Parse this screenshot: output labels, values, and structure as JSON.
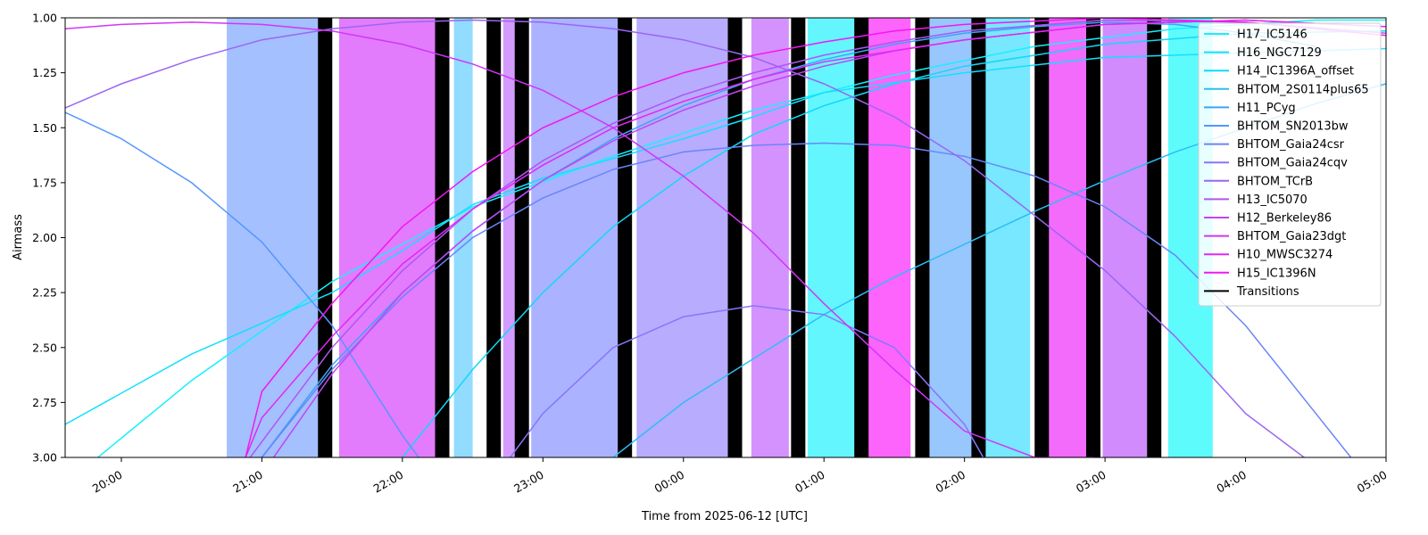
{
  "chart_data": {
    "type": "line",
    "title": "",
    "xlabel": "Time from 2025-06-12 [UTC]",
    "ylabel": "Airmass",
    "x_unit": "UTC time",
    "xlim": [
      "2025-06-11T19:36",
      "2025-06-12T05:00"
    ],
    "ylim": [
      1.0,
      3.0
    ],
    "y_inverted": true,
    "grid": false,
    "legend_position": "top-right",
    "x_ticks": [
      "20:00",
      "21:00",
      "22:00",
      "23:00",
      "00:00",
      "01:00",
      "02:00",
      "03:00",
      "04:00",
      "05:00"
    ],
    "y_ticks": [
      "1.00",
      "1.25",
      "1.50",
      "1.75",
      "2.00",
      "2.25",
      "2.50",
      "2.75",
      "3.00"
    ],
    "transitions": {
      "name": "Transitions",
      "color": "#000000",
      "times": [
        "21:27",
        "22:17",
        "22:39",
        "22:51",
        "23:35",
        "00:22",
        "00:49",
        "01:16",
        "01:42",
        "02:06",
        "02:33",
        "02:55",
        "03:21"
      ]
    },
    "observation_blocks": [
      {
        "start": "20:45",
        "end": "21:27",
        "color": "#a4c0ff"
      },
      {
        "start": "21:33",
        "end": "22:14",
        "color": "#e27cfd"
      },
      {
        "start": "22:22",
        "end": "22:30",
        "color": "#91dcff"
      },
      {
        "start": "22:43",
        "end": "22:48",
        "color": "#d49bff"
      },
      {
        "start": "22:55",
        "end": "23:35",
        "color": "#abb2ff"
      },
      {
        "start": "23:40",
        "end": "00:22",
        "color": "#b8acfe"
      },
      {
        "start": "00:29",
        "end": "00:45",
        "color": "#d492ff"
      },
      {
        "start": "00:53",
        "end": "01:13",
        "color": "#64f6fe"
      },
      {
        "start": "01:18",
        "end": "01:37",
        "color": "#fc64fc"
      },
      {
        "start": "01:44",
        "end": "02:03",
        "color": "#98c7fd"
      },
      {
        "start": "02:08",
        "end": "02:28",
        "color": "#77e8ff"
      },
      {
        "start": "02:34",
        "end": "02:53",
        "color": "#f26bfb"
      },
      {
        "start": "02:59",
        "end": "03:18",
        "color": "#d18bfd"
      },
      {
        "start": "03:27",
        "end": "03:46",
        "color": "#5efbfd"
      }
    ],
    "series": [
      {
        "name": "H17_IC5146",
        "color": "#16f0ff",
        "x": [
          "19:50",
          "20:30",
          "21:30",
          "22:30",
          "23:30",
          "00:30",
          "01:30",
          "02:30",
          "03:30",
          "04:30",
          "05:00"
        ],
        "y": [
          3.0,
          2.65,
          2.2,
          1.86,
          1.63,
          1.42,
          1.26,
          1.13,
          1.05,
          1.01,
          1.01
        ]
      },
      {
        "name": "H16_NGC7129",
        "color": "#12e0ff",
        "x": [
          "19:36",
          "20:30",
          "21:30",
          "22:00",
          "22:30",
          "23:00",
          "23:30",
          "00:00",
          "00:30",
          "01:00",
          "02:00",
          "03:00",
          "04:00",
          "05:00"
        ],
        "y": [
          2.85,
          2.53,
          2.25,
          2.06,
          1.85,
          1.73,
          1.64,
          1.55,
          1.45,
          1.34,
          1.25,
          1.18,
          1.16,
          1.14
        ]
      },
      {
        "name": "H14_IC1396A_offset",
        "color": "#10d8f8",
        "x": [
          "22:00",
          "22:30",
          "23:00",
          "23:30",
          "00:00",
          "00:30",
          "01:00",
          "01:30",
          "02:00",
          "03:00",
          "04:00",
          "05:00"
        ],
        "y": [
          3.0,
          2.6,
          2.25,
          1.95,
          1.72,
          1.53,
          1.4,
          1.3,
          1.22,
          1.12,
          1.07,
          1.06
        ]
      },
      {
        "name": "BHTOM_2S0114plus65",
        "color": "#2cbdf5",
        "x": [
          "23:30",
          "00:00",
          "00:30",
          "01:00",
          "01:30",
          "02:00",
          "02:30",
          "03:00",
          "03:30",
          "04:00",
          "04:30",
          "05:00"
        ],
        "y": [
          3.0,
          2.75,
          2.55,
          2.35,
          2.18,
          2.03,
          1.88,
          1.74,
          1.61,
          1.5,
          1.39,
          1.3
        ]
      },
      {
        "name": "H11_PCyg",
        "color": "#3aa6f5",
        "x": [
          "21:00",
          "21:30",
          "22:00",
          "22:30",
          "23:00",
          "23:30",
          "00:00",
          "00:30",
          "01:00",
          "01:30",
          "02:00",
          "02:30",
          "03:00",
          "03:30",
          "04:00",
          "04:30"
        ],
        "y": [
          3.0,
          2.58,
          2.25,
          1.97,
          1.74,
          1.55,
          1.4,
          1.28,
          1.19,
          1.12,
          1.07,
          1.04,
          1.02,
          1.03,
          1.07,
          1.13
        ]
      },
      {
        "name": "BHTOM_SN2013bw",
        "color": "#5496ff",
        "x": [
          "19:36",
          "20:00",
          "20:30",
          "21:00",
          "21:30",
          "22:00",
          "22:07"
        ],
        "y": [
          1.43,
          1.55,
          1.75,
          2.02,
          2.4,
          2.9,
          3.0
        ]
      },
      {
        "name": "BHTOM_Gaia24csr",
        "color": "#6a85fa",
        "x": [
          "21:00",
          "21:30",
          "22:00",
          "22:30",
          "23:00",
          "23:30",
          "00:00",
          "00:30",
          "01:00",
          "01:30",
          "02:00",
          "02:30",
          "03:00",
          "03:30",
          "04:00",
          "04:30",
          "04:45"
        ],
        "y": [
          3.0,
          2.6,
          2.27,
          2.0,
          1.82,
          1.69,
          1.61,
          1.58,
          1.57,
          1.58,
          1.63,
          1.72,
          1.86,
          2.08,
          2.4,
          2.8,
          3.0
        ]
      },
      {
        "name": "BHTOM_Gaia24cqv",
        "color": "#8776fa",
        "x": [
          "22:46",
          "23:00",
          "23:30",
          "00:00",
          "00:30",
          "01:00",
          "01:30",
          "02:00",
          "02:08"
        ],
        "y": [
          3.0,
          2.8,
          2.5,
          2.36,
          2.31,
          2.35,
          2.5,
          2.85,
          3.0
        ]
      },
      {
        "name": "BHTOM_TCrB",
        "color": "#9a66f3",
        "x": [
          "19:36",
          "20:00",
          "20:30",
          "21:00",
          "21:30",
          "22:00",
          "22:30",
          "23:00",
          "23:30",
          "00:00",
          "00:30",
          "01:00",
          "01:30",
          "02:00",
          "02:30",
          "03:00",
          "03:30",
          "04:00",
          "04:25"
        ],
        "y": [
          1.41,
          1.3,
          1.19,
          1.1,
          1.05,
          1.02,
          1.01,
          1.02,
          1.05,
          1.1,
          1.18,
          1.3,
          1.45,
          1.65,
          1.9,
          2.15,
          2.45,
          2.8,
          3.0
        ]
      },
      {
        "name": "H13_IC5070",
        "color": "#ad57f3",
        "x": [
          "20:55",
          "21:30",
          "22:00",
          "22:30",
          "23:00",
          "23:30",
          "00:00",
          "00:30",
          "01:00",
          "01:30",
          "02:00",
          "03:00",
          "04:00",
          "05:00"
        ],
        "y": [
          3.0,
          2.5,
          2.15,
          1.87,
          1.65,
          1.48,
          1.35,
          1.25,
          1.17,
          1.11,
          1.06,
          1.01,
          1.02,
          1.07
        ]
      },
      {
        "name": "H12_Berkeley86",
        "color": "#c045f3",
        "x": [
          "21:05",
          "21:30",
          "22:00",
          "22:30",
          "23:00",
          "23:30",
          "00:00",
          "00:30",
          "01:00",
          "01:30",
          "02:00",
          "03:00",
          "04:00",
          "05:00"
        ],
        "y": [
          3.0,
          2.62,
          2.25,
          1.97,
          1.74,
          1.56,
          1.42,
          1.31,
          1.22,
          1.15,
          1.1,
          1.03,
          1.01,
          1.04
        ]
      },
      {
        "name": "BHTOM_Gaia23dgt",
        "color": "#d235f8",
        "x": [
          "19:36",
          "20:00",
          "20:30",
          "21:00",
          "21:30",
          "22:00",
          "22:30",
          "23:00",
          "23:30",
          "00:00",
          "00:30",
          "01:00",
          "01:30",
          "02:00",
          "02:30",
          "02:55"
        ],
        "y": [
          1.05,
          1.03,
          1.02,
          1.03,
          1.06,
          1.12,
          1.21,
          1.33,
          1.5,
          1.72,
          1.98,
          2.3,
          2.6,
          2.88,
          3.0,
          3.0
        ]
      },
      {
        "name": "H10_MWSC3274",
        "color": "#e426f5",
        "x": [
          "20:53",
          "21:00",
          "21:30",
          "22:00",
          "22:30",
          "23:00",
          "23:30",
          "00:00",
          "00:30",
          "01:00",
          "02:00",
          "03:00",
          "04:00",
          "05:00"
        ],
        "y": [
          3.0,
          2.82,
          2.45,
          2.12,
          1.87,
          1.67,
          1.5,
          1.38,
          1.28,
          1.2,
          1.1,
          1.03,
          1.01,
          1.04
        ]
      },
      {
        "name": "H15_IC1396N",
        "color": "#f416f2",
        "x": [
          "20:53",
          "21:00",
          "21:30",
          "22:00",
          "22:30",
          "23:00",
          "23:30",
          "00:00",
          "00:30",
          "01:00",
          "01:30",
          "02:00",
          "03:00",
          "04:00",
          "05:00"
        ],
        "y": [
          3.0,
          2.7,
          2.3,
          1.95,
          1.7,
          1.5,
          1.36,
          1.25,
          1.17,
          1.11,
          1.06,
          1.03,
          1.0,
          1.02,
          1.08
        ]
      }
    ]
  }
}
